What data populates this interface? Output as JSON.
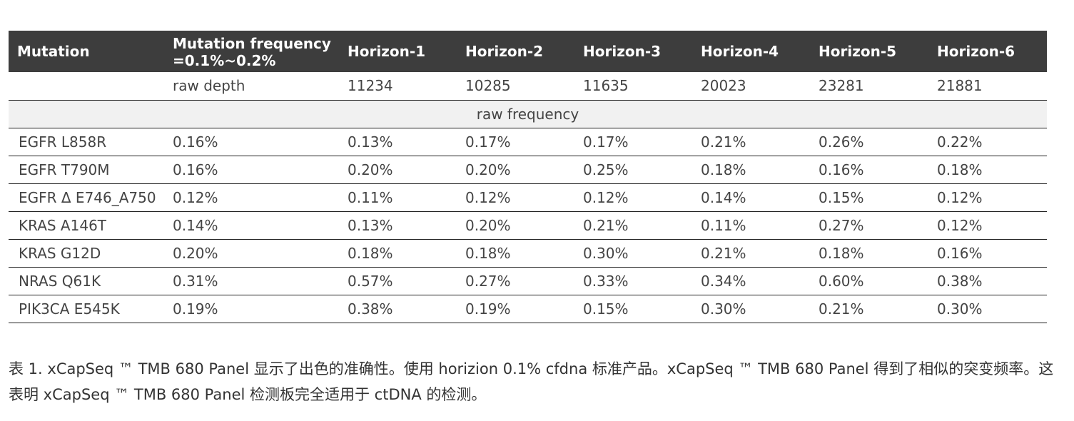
{
  "table": {
    "headers": [
      "Mutation",
      "Mutation  frequency =0.1%~0.2%",
      "Horizon-1",
      "Horizon-2",
      "Horizon-3",
      "Horizon-4",
      "Horizon-5",
      "Horizon-6"
    ],
    "depth_row": [
      "",
      "raw depth",
      "11234",
      "10285",
      "11635",
      "20023",
      "23281",
      "21881"
    ],
    "section_label": "raw frequency",
    "rows": [
      [
        "EGFR L858R",
        "0.16%",
        "0.13%",
        "0.17%",
        "0.17%",
        "0.21%",
        "0.26%",
        "0.22%"
      ],
      [
        "EGFR T790M",
        "0.16%",
        "0.20%",
        "0.20%",
        "0.25%",
        "0.18%",
        "0.16%",
        "0.18%"
      ],
      [
        "EGFR Δ E746_A750",
        "0.12%",
        "0.11%",
        "0.12%",
        "0.12%",
        "0.14%",
        "0.15%",
        "0.12%"
      ],
      [
        "KRAS A146T",
        "0.14%",
        "0.13%",
        "0.20%",
        "0.21%",
        "0.11%",
        "0.27%",
        "0.12%"
      ],
      [
        "KRAS G12D",
        "0.20%",
        "0.18%",
        "0.18%",
        "0.30%",
        "0.21%",
        "0.18%",
        "0.16%"
      ],
      [
        "NRAS Q61K",
        "0.31%",
        "0.57%",
        "0.27%",
        "0.33%",
        "0.34%",
        "0.60%",
        "0.38%"
      ],
      [
        "PIK3CA E545K",
        "0.19%",
        "0.38%",
        "0.19%",
        "0.15%",
        "0.30%",
        "0.21%",
        "0.30%"
      ]
    ]
  },
  "caption": "表 1.  xCapSeq ™ TMB 680 Panel 显示了出色的准确性。使用 horizion 0.1% cfdna 标准产品。xCapSeq ™ TMB 680 Panel 得到了相似的突变频率。这表明 xCapSeq ™ TMB 680 Panel 检测板完全适用于 ctDNA 的检测。",
  "colors": {
    "header_bg": "#3d3d3d",
    "header_text": "#ffffff",
    "shaded_row_bg": "#f1f1f1",
    "rule": "#222222"
  }
}
